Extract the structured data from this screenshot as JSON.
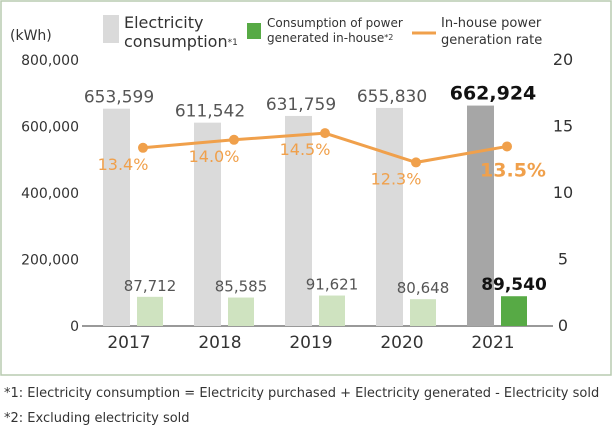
{
  "chart_data": {
    "type": "bar",
    "categories": [
      "2017",
      "2018",
      "2019",
      "2020",
      "2021"
    ],
    "y_left_unit": "(kWh)",
    "y_left_ticks": [
      "0",
      "200,000",
      "400,000",
      "600,000",
      "800,000"
    ],
    "y_left_range": [
      0,
      800000
    ],
    "y_right_ticks": [
      "0",
      "5",
      "10",
      "15",
      "20"
    ],
    "y_right_range": [
      0,
      20
    ],
    "grid": false,
    "legend_position": "top",
    "series": [
      {
        "name": "Electricity consumption",
        "name_superscript": "*1",
        "type": "bar",
        "axis": "left",
        "values": [
          653599,
          611542,
          631759,
          655830,
          662924
        ],
        "labels": [
          "653,599",
          "611,542",
          "631,759",
          "655,830",
          "662,924"
        ],
        "color": "#dadada",
        "highlight_color": "#a6a6a6"
      },
      {
        "name": "Consumption of power generated in-house",
        "name_superscript": "*2",
        "type": "bar",
        "axis": "left",
        "values": [
          87712,
          85585,
          91621,
          80648,
          89540
        ],
        "labels": [
          "87,712",
          "85,585",
          "91,621",
          "80,648",
          "89,540"
        ],
        "color": "#cfe3c0",
        "highlight_color": "#57aa45"
      },
      {
        "name": "In-house power generation rate",
        "type": "line",
        "axis": "right",
        "values": [
          13.4,
          14.0,
          14.5,
          12.3,
          13.5
        ],
        "labels": [
          "13.4%",
          "14.0%",
          "14.5%",
          "12.3%",
          "13.5%"
        ],
        "color": "#f0a04b"
      }
    ],
    "highlight_category": "2021",
    "legend_labels": {
      "electricity_line1": "Electricity",
      "electricity_line2": "consumption",
      "electricity_sup": "*1",
      "inhouse_line1": "Consumption of power",
      "inhouse_line2": "generated in-house",
      "inhouse_sup": "*2",
      "rate_line1": "In-house power",
      "rate_line2": "generation rate"
    },
    "colors": {
      "frame": "#b8cbb0",
      "axis": "#333333",
      "text": "#333333",
      "label_gray": "#555555",
      "label_bold": "#111111",
      "rate_label": "#f0a04b"
    }
  },
  "footnotes": [
    "*1: Electricity consumption = Electricity purchased + Electricity generated - Electricity sold",
    "*2: Excluding electricity sold"
  ]
}
